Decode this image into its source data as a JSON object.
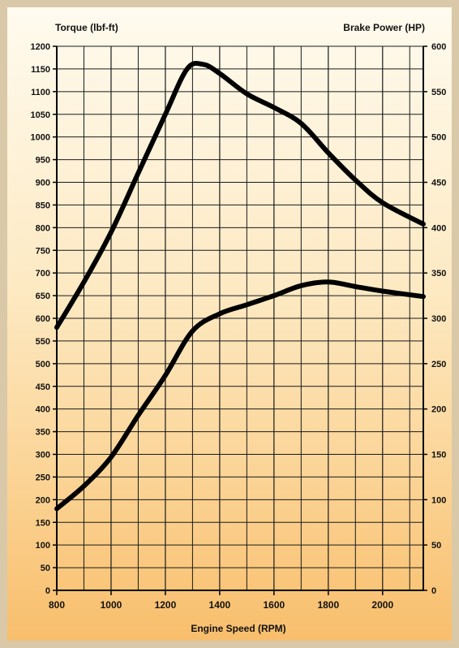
{
  "chart_data": {
    "type": "line",
    "xlabel": "Engine Speed (RPM)",
    "ylabel_left": "Torque (lbf-ft)",
    "ylabel_right": "Brake Power (HP)",
    "xlim": [
      800,
      2150
    ],
    "ylim_left": [
      0,
      1200
    ],
    "ylim_right": [
      0,
      600
    ],
    "x_ticks": [
      "800",
      "1000",
      "1200",
      "1400",
      "1600",
      "1800",
      "2000"
    ],
    "y_ticks_left": [
      "0",
      "50",
      "100",
      "150",
      "200",
      "250",
      "300",
      "350",
      "400",
      "450",
      "500",
      "550",
      "600",
      "650",
      "700",
      "750",
      "800",
      "850",
      "900",
      "950",
      "1000",
      "1050",
      "1100",
      "1150",
      "1200"
    ],
    "y_ticks_right": [
      "0",
      "50",
      "100",
      "150",
      "200",
      "250",
      "300",
      "350",
      "400",
      "450",
      "500",
      "550",
      "600"
    ],
    "grid": true,
    "series": [
      {
        "axis": "left",
        "x": [
          800,
          900,
          1000,
          1100,
          1200,
          1280,
          1340,
          1400,
          1500,
          1600,
          1700,
          1800,
          1900,
          2000,
          2150
        ],
        "values": [
          580,
          680,
          790,
          920,
          1050,
          1150,
          1160,
          1140,
          1095,
          1065,
          1030,
          965,
          905,
          855,
          808
        ]
      },
      {
        "axis": "right",
        "x": [
          800,
          900,
          1000,
          1100,
          1200,
          1300,
          1400,
          1500,
          1600,
          1700,
          1800,
          1900,
          2000,
          2150
        ],
        "values": [
          90,
          115,
          147,
          193,
          237,
          286,
          305,
          315,
          325,
          336,
          340,
          335,
          330,
          324
        ]
      }
    ]
  }
}
